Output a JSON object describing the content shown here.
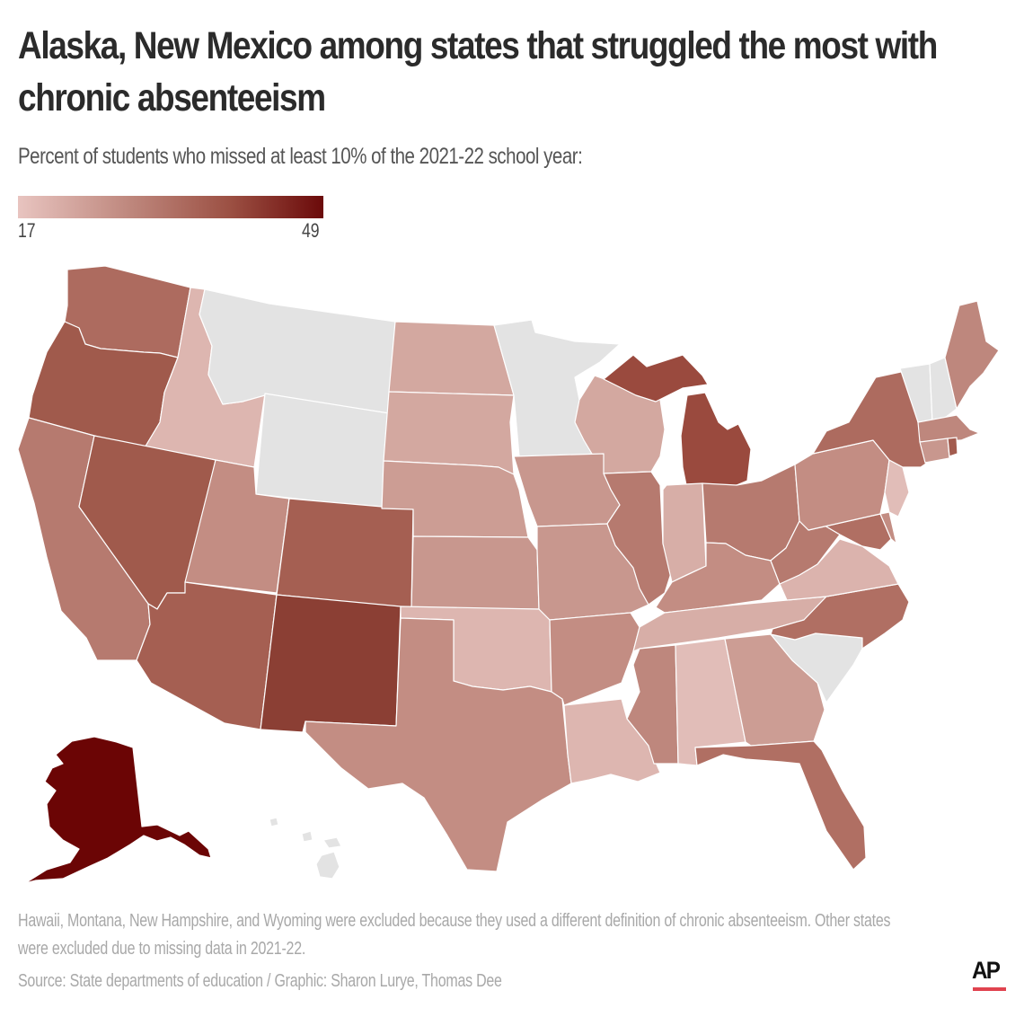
{
  "header": {
    "title": "Alaska, New Mexico among states that struggled the most with chronic absenteeism",
    "subtitle": "Percent of students who missed at least 10% of the 2021-22 school year:"
  },
  "legend": {
    "min_label": "17",
    "max_label": "49",
    "min_color": "#e8c4c0",
    "max_color": "#6b0a0a",
    "no_data_color": "#e3e3e3"
  },
  "footer": {
    "note": "Hawaii, Montana, New Hampshire, and Wyoming were excluded because they used a different definition of chronic absenteeism. Other states were excluded due to missing data in 2021-22.",
    "source": "Source: State departments of education / Graphic: Sharon Lurye, Thomas Dee",
    "logo": "AP",
    "logo_accent_color": "#e0434f"
  },
  "chart_data": {
    "type": "choropleth",
    "title": "Alaska, New Mexico among states that struggled the most with chronic absenteeism",
    "subtitle": "Percent of students who missed at least 10% of the 2021-22 school year:",
    "scale": {
      "min": 17,
      "max": 49,
      "colors": [
        "#e8c4c0",
        "#6b0a0a"
      ]
    },
    "excluded_definition": [
      "Hawaii",
      "Montana",
      "New Hampshire",
      "Wyoming"
    ],
    "missing_data": [
      "Minnesota",
      "South Carolina",
      "Vermont"
    ],
    "states": {
      "AK": {
        "name": "Alaska",
        "value": 49,
        "color": "#6b0505"
      },
      "NM": {
        "name": "New Mexico",
        "value": 42,
        "color": "#8b3f34"
      },
      "MI": {
        "name": "Michigan",
        "value": 38,
        "color": "#9a4a3e"
      },
      "NV": {
        "name": "Nevada",
        "value": 36,
        "color": "#a05a4c"
      },
      "OR": {
        "name": "Oregon",
        "value": 36,
        "color": "#a05a4c"
      },
      "AZ": {
        "name": "Arizona",
        "value": 35,
        "color": "#a55f52"
      },
      "CO": {
        "name": "Colorado",
        "value": 35,
        "color": "#a55f52"
      },
      "RI": {
        "name": "Rhode Island",
        "value": 34,
        "color": "#a35c4f"
      },
      "WA": {
        "name": "Washington",
        "value": 32,
        "color": "#ad6b5f"
      },
      "NY": {
        "name": "New York",
        "value": 32,
        "color": "#ad6b5f"
      },
      "MD": {
        "name": "Maryland",
        "value": 31,
        "color": "#b06f63"
      },
      "FL": {
        "name": "Florida",
        "value": 31,
        "color": "#b06f63"
      },
      "NC": {
        "name": "North Carolina",
        "value": 31,
        "color": "#b06f63"
      },
      "CA": {
        "name": "California",
        "value": 30,
        "color": "#b67a6f"
      },
      "IL": {
        "name": "Illinois",
        "value": 30,
        "color": "#b67a6f"
      },
      "OH": {
        "name": "Ohio",
        "value": 30,
        "color": "#b67a6f"
      },
      "WV": {
        "name": "West Virginia",
        "value": 30,
        "color": "#b67a6f"
      },
      "ME": {
        "name": "Maine",
        "value": 28,
        "color": "#be877d"
      },
      "MA": {
        "name": "Massachusetts",
        "value": 28,
        "color": "#be877d"
      },
      "MS": {
        "name": "Mississippi",
        "value": 28,
        "color": "#be877d"
      },
      "UT": {
        "name": "Utah",
        "value": 27,
        "color": "#c38d83"
      },
      "TX": {
        "name": "Texas",
        "value": 27,
        "color": "#c38d83"
      },
      "KY": {
        "name": "Kentucky",
        "value": 27,
        "color": "#c38d83"
      },
      "PA": {
        "name": "Pennsylvania",
        "value": 27,
        "color": "#c38d83"
      },
      "AR": {
        "name": "Arkansas",
        "value": 27,
        "color": "#c38d83"
      },
      "DE": {
        "name": "Delaware",
        "value": 27,
        "color": "#c38d83"
      },
      "IA": {
        "name": "Iowa",
        "value": 26,
        "color": "#c8978e"
      },
      "MO": {
        "name": "Missouri",
        "value": 26,
        "color": "#c8978e"
      },
      "KS": {
        "name": "Kansas",
        "value": 26,
        "color": "#c8978e"
      },
      "CT": {
        "name": "Connecticut",
        "value": 26,
        "color": "#c8978e"
      },
      "NE": {
        "name": "Nebraska",
        "value": 25,
        "color": "#cc9d94"
      },
      "GA": {
        "name": "Georgia",
        "value": 25,
        "color": "#cc9d94"
      },
      "ND": {
        "name": "North Dakota",
        "value": 23,
        "color": "#d3a8a0"
      },
      "SD": {
        "name": "South Dakota",
        "value": 23,
        "color": "#d3a8a0"
      },
      "WI": {
        "name": "Wisconsin",
        "value": 23,
        "color": "#d3a8a0"
      },
      "IN": {
        "name": "Indiana",
        "value": 22,
        "color": "#d7aea7"
      },
      "TN": {
        "name": "Tennessee",
        "value": 22,
        "color": "#d7aea7"
      },
      "VA": {
        "name": "Virginia",
        "value": 21,
        "color": "#dbb3ad"
      },
      "ID": {
        "name": "Idaho",
        "value": 20,
        "color": "#ddb6b0"
      },
      "OK": {
        "name": "Oklahoma",
        "value": 20,
        "color": "#ddb6b0"
      },
      "LA": {
        "name": "Louisiana",
        "value": 20,
        "color": "#ddb6b0"
      },
      "AL": {
        "name": "Alabama",
        "value": 19,
        "color": "#e1bdb8"
      },
      "NJ": {
        "name": "New Jersey",
        "value": 19,
        "color": "#e1bdb8"
      },
      "MT": {
        "name": "Montana",
        "value": null,
        "color": "#e3e3e3"
      },
      "WY": {
        "name": "Wyoming",
        "value": null,
        "color": "#e3e3e3"
      },
      "MN": {
        "name": "Minnesota",
        "value": null,
        "color": "#e3e3e3"
      },
      "SC": {
        "name": "South Carolina",
        "value": null,
        "color": "#e3e3e3"
      },
      "VT": {
        "name": "Vermont",
        "value": null,
        "color": "#e3e3e3"
      },
      "NH": {
        "name": "New Hampshire",
        "value": null,
        "color": "#e3e3e3"
      },
      "HI": {
        "name": "Hawaii",
        "value": null,
        "color": "#e3e3e3"
      }
    }
  }
}
